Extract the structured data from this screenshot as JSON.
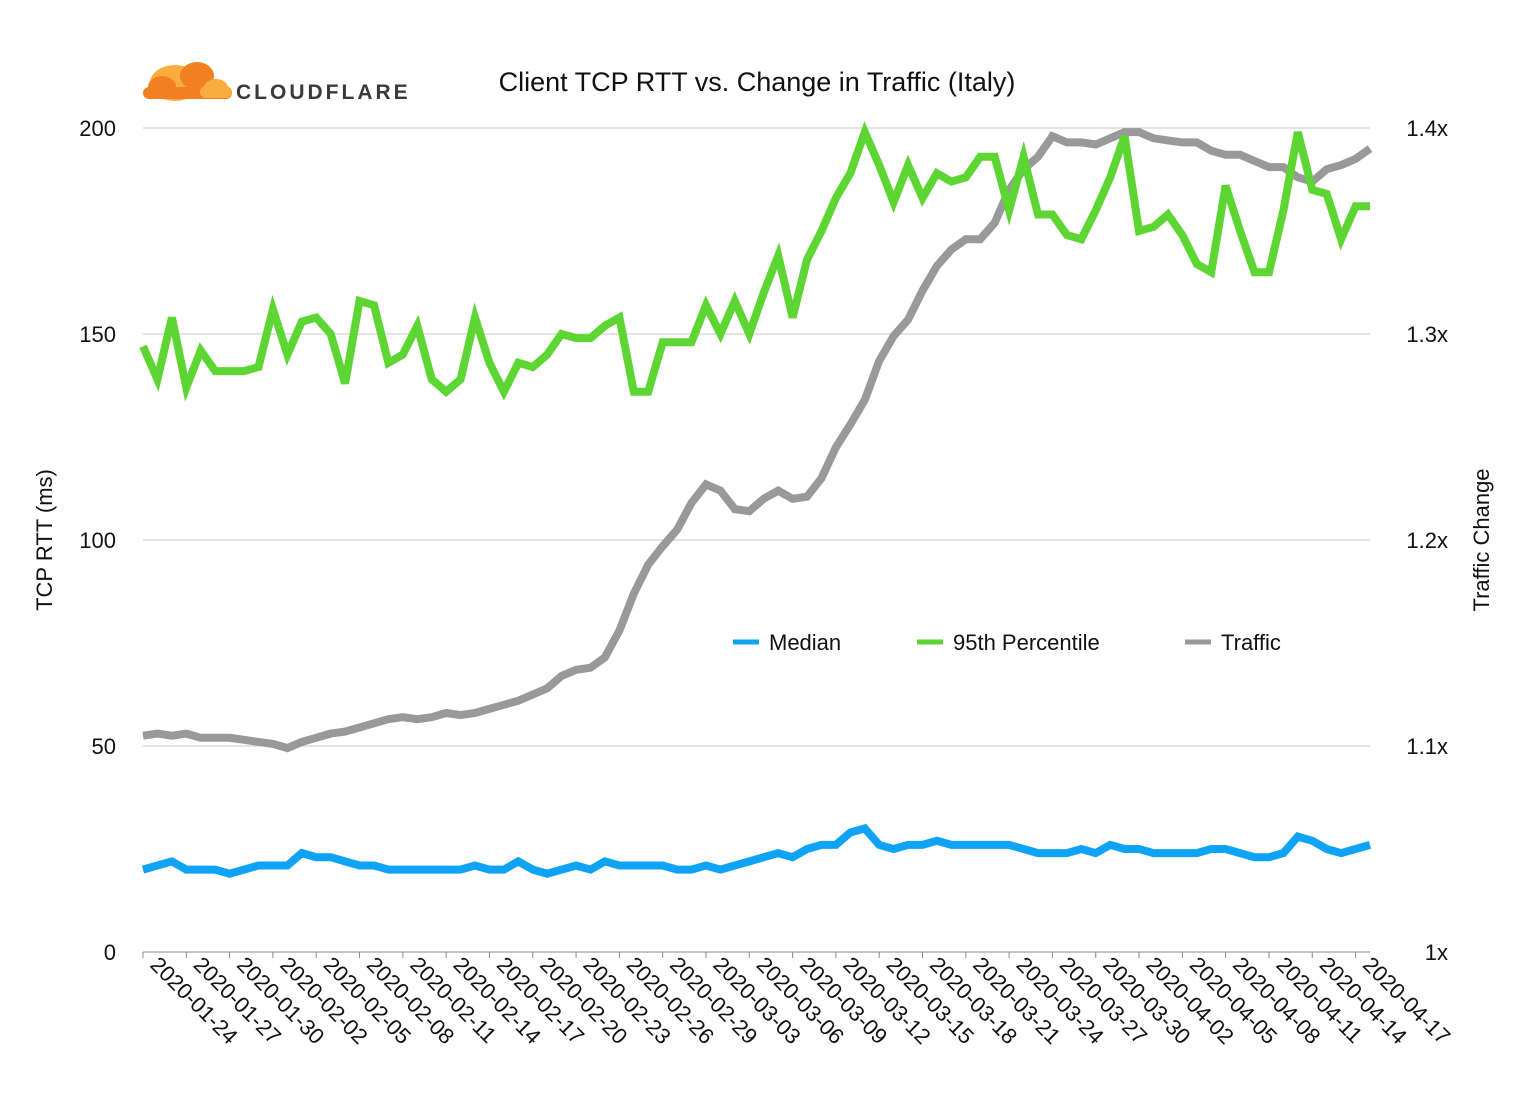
{
  "brand": {
    "name": "CLOUDFLARE",
    "cloud_color": "#F38020",
    "cloud_light_color": "#FAAD3F",
    "text_color": "#3a3a3a"
  },
  "chart_data": {
    "type": "line",
    "title": "Client TCP RTT vs. Change in Traffic (Italy)",
    "ylabel": "TCP RTT (ms)",
    "y2label": "Traffic Change",
    "ylim": [
      0,
      200
    ],
    "y2lim": [
      1.0,
      1.4
    ],
    "yticks": [
      0,
      50,
      100,
      150,
      200
    ],
    "y2ticks": [
      "1x",
      "1.1x",
      "1.2x",
      "1.3x",
      "1.4x"
    ],
    "grid": true,
    "legend_position": "center-right",
    "x_tick_labels": [
      "2020-01-24",
      "2020-01-27",
      "2020-01-30",
      "2020-02-02",
      "2020-02-05",
      "2020-02-08",
      "2020-02-11",
      "2020-02-14",
      "2020-02-17",
      "2020-02-20",
      "2020-02-23",
      "2020-02-26",
      "2020-02-29",
      "2020-03-03",
      "2020-03-06",
      "2020-03-09",
      "2020-03-12",
      "2020-03-15",
      "2020-03-18",
      "2020-03-21",
      "2020-03-24",
      "2020-03-27",
      "2020-03-30",
      "2020-04-02",
      "2020-04-05",
      "2020-04-08",
      "2020-04-11",
      "2020-04-14",
      "2020-04-17"
    ],
    "series": [
      {
        "name": "Median",
        "axis": "left",
        "color": "#0FA3F5",
        "values": [
          20,
          21,
          22,
          20,
          20,
          20,
          19,
          20,
          21,
          21,
          21,
          24,
          23,
          23,
          22,
          21,
          21,
          20,
          20,
          20,
          20,
          20,
          20,
          21,
          20,
          20,
          22,
          20,
          19,
          20,
          21,
          20,
          22,
          21,
          21,
          21,
          21,
          20,
          20,
          21,
          20,
          21,
          22,
          23,
          24,
          23,
          25,
          26,
          26,
          29,
          30,
          26,
          25,
          26,
          26,
          27,
          26,
          26,
          26,
          26,
          26,
          25,
          24,
          24,
          24,
          25,
          24,
          26,
          25,
          25,
          24,
          24,
          24,
          24,
          25,
          25,
          24,
          23,
          23,
          24,
          28,
          27,
          25,
          24,
          25,
          26
        ]
      },
      {
        "name": "95th Percentile",
        "axis": "left",
        "color": "#5DD634",
        "values": [
          147,
          139,
          154,
          137,
          146,
          141,
          141,
          141,
          142,
          156,
          145,
          153,
          154,
          150,
          138,
          158,
          157,
          143,
          145,
          152,
          139,
          136,
          139,
          154,
          143,
          136,
          143,
          142,
          145,
          150,
          149,
          149,
          152,
          154,
          136,
          136,
          148,
          148,
          148,
          157,
          150,
          158,
          150,
          160,
          169,
          154,
          168,
          175,
          183,
          189,
          199,
          191,
          182,
          191,
          183,
          189,
          187,
          188,
          193,
          193,
          180,
          193,
          179,
          179,
          174,
          173,
          180,
          188,
          198,
          175,
          176,
          179,
          174,
          167,
          165,
          186,
          175,
          165,
          165,
          180,
          199,
          185,
          184,
          173,
          181,
          181
        ]
      },
      {
        "name": "Traffic",
        "axis": "right",
        "color": "#999999",
        "values": [
          1.105,
          1.106,
          1.105,
          1.106,
          1.104,
          1.104,
          1.104,
          1.103,
          1.102,
          1.101,
          1.099,
          1.102,
          1.104,
          1.106,
          1.107,
          1.109,
          1.111,
          1.113,
          1.114,
          1.113,
          1.114,
          1.116,
          1.115,
          1.116,
          1.118,
          1.12,
          1.122,
          1.125,
          1.128,
          1.134,
          1.137,
          1.138,
          1.143,
          1.156,
          1.174,
          1.188,
          1.197,
          1.205,
          1.218,
          1.227,
          1.224,
          1.215,
          1.214,
          1.22,
          1.224,
          1.22,
          1.221,
          1.23,
          1.245,
          1.256,
          1.268,
          1.287,
          1.299,
          1.307,
          1.321,
          1.333,
          1.341,
          1.346,
          1.346,
          1.354,
          1.37,
          1.38,
          1.386,
          1.396,
          1.393,
          1.393,
          1.392,
          1.395,
          1.398,
          1.398,
          1.395,
          1.394,
          1.393,
          1.393,
          1.389,
          1.387,
          1.387,
          1.384,
          1.381,
          1.381,
          1.376,
          1.374,
          1.38,
          1.382,
          1.385,
          1.39
        ]
      }
    ]
  }
}
